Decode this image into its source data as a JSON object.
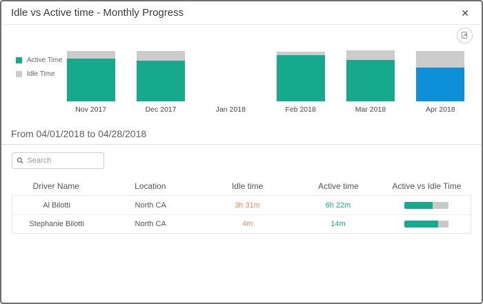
{
  "window": {
    "title": "Idle vs Active time - Monthly Progress",
    "close_icon": "✕"
  },
  "colors": {
    "active_teal": "#17a98b",
    "idle_gray": "#cccccc",
    "highlight_blue": "#0e90d8",
    "idle_text_orange": "#e98b56"
  },
  "chart_data": {
    "type": "bar",
    "stacked": true,
    "categories": [
      "Nov 2017",
      "Dec 2017",
      "Jan 2018",
      "Feb 2018",
      "Mar 2018",
      "Apr 2018"
    ],
    "series": [
      {
        "name": "Active Time",
        "values": [
          62,
          59,
          0,
          67,
          60,
          49
        ]
      },
      {
        "name": "Idle Time",
        "values": [
          11,
          14,
          0,
          5,
          14,
          24
        ]
      }
    ],
    "highlighted_category": "Apr 2018",
    "colors": {
      "active": "#17a98b",
      "idle": "#cccccc",
      "highlight": "#0e90d8"
    },
    "legend_position": "left",
    "xlabel": "",
    "ylabel": ""
  },
  "legend": {
    "items": [
      {
        "label": "Active Time",
        "color": "#17a98b"
      },
      {
        "label": "Idle Time",
        "color": "#cccccc"
      }
    ]
  },
  "period_heading": "From 04/01/2018 to 04/28/2018",
  "search": {
    "placeholder": "Search"
  },
  "table": {
    "columns": [
      "Driver Name",
      "Location",
      "Idle time",
      "Active time",
      "Active vs Idle Time"
    ],
    "rows": [
      {
        "driver": "Al Bilotti",
        "location": "North CA",
        "idle": "3h 31m",
        "active": "6h 22m",
        "active_pct": 64
      },
      {
        "driver": "Stephanie Bilotti",
        "location": "North CA",
        "idle": "4m",
        "active": "14m",
        "active_pct": 78
      }
    ]
  }
}
